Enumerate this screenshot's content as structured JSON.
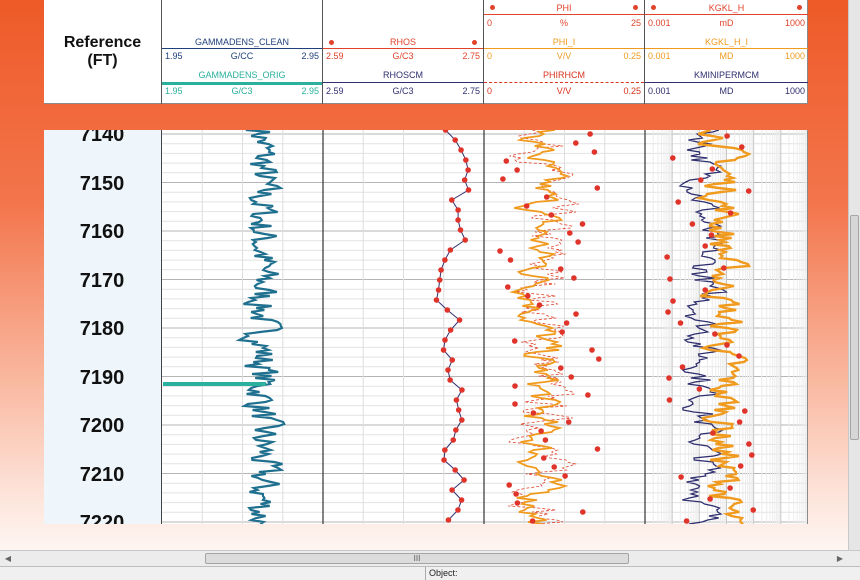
{
  "reference": {
    "line1": "Reference",
    "line2": "(FT)"
  },
  "depths": [
    "7140",
    "7150",
    "7160",
    "7170",
    "7180",
    "7190",
    "7200",
    "7210",
    "7220"
  ],
  "tracks": [
    {
      "id": "track1",
      "curves": [
        {
          "name": "GAMMADENS_CLEAN",
          "unit": "G/CC",
          "min": "1.95",
          "max": "2.95",
          "color": "#1f3f7a"
        },
        {
          "name": "GAMMADENS_ORIG",
          "unit": "G/C3",
          "min": "1.95",
          "max": "2.95",
          "color": "#2ab09c"
        }
      ]
    },
    {
      "id": "track2",
      "curves": [
        {
          "name": "RHOS",
          "unit": "G/C3",
          "min": "2.59",
          "max": "2.75",
          "color": "#e0432a"
        },
        {
          "name": "RHOSCM",
          "unit": "G/C3",
          "min": "2.59",
          "max": "2.75",
          "color": "#2f2f6f"
        }
      ]
    },
    {
      "id": "track3",
      "curves": [
        {
          "name": "PHI",
          "unit": "%",
          "min": "0",
          "max": "25",
          "color": "#e0432a"
        },
        {
          "name": "PHI_I",
          "unit": "V/V",
          "min": "0",
          "max": "0.25",
          "color": "#f09a1e"
        },
        {
          "name": "PHIRHCM",
          "unit": "V/V",
          "min": "0",
          "max": "0.25",
          "color": "#d9341d"
        }
      ]
    },
    {
      "id": "track4",
      "curves": [
        {
          "name": "KGKL_H",
          "unit": "mD",
          "min": "0.001",
          "max": "1000",
          "color": "#e0432a"
        },
        {
          "name": "KGKL_H_I",
          "unit": "MD",
          "min": "0.001",
          "max": "1000",
          "color": "#f09a1e"
        },
        {
          "name": "KMINIPERMCM",
          "unit": "MD",
          "min": "0.001",
          "max": "1000",
          "color": "#2f2f6f"
        }
      ]
    }
  ],
  "statusbar": {
    "object_label": "Object:"
  },
  "scroll": {
    "grip": "III"
  }
}
